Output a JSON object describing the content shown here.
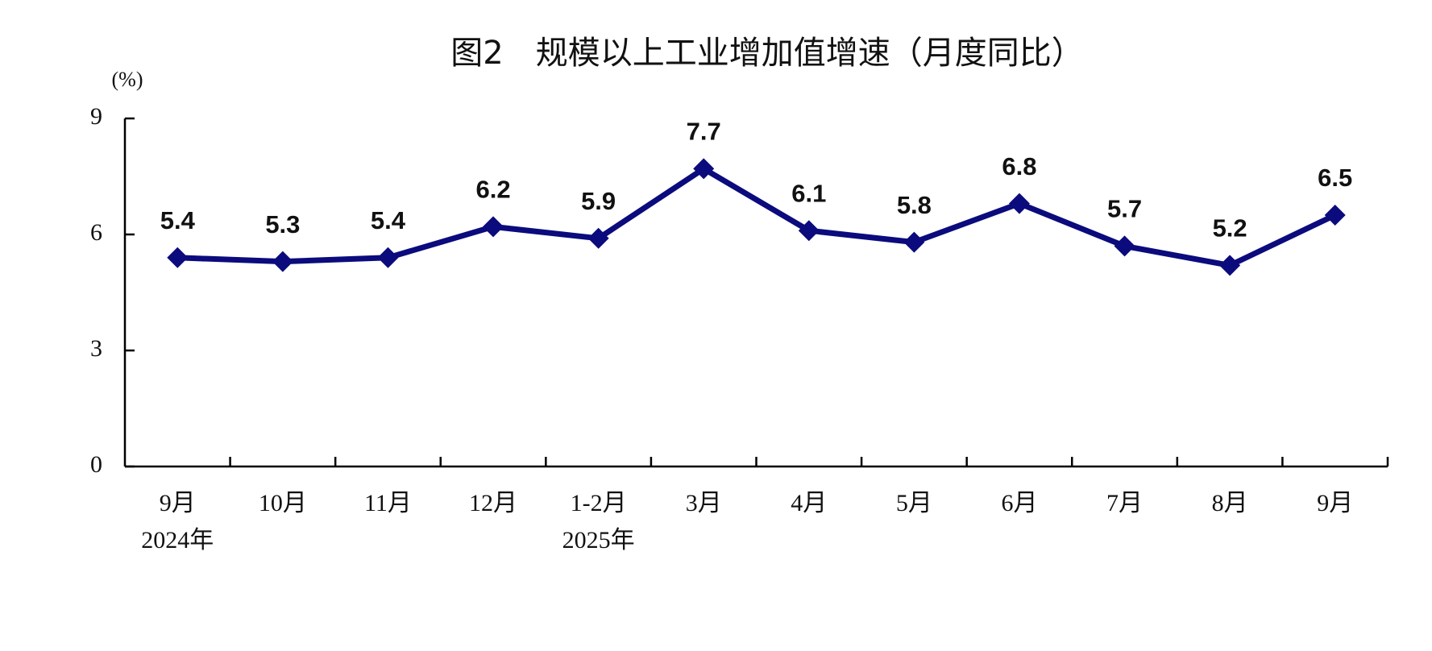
{
  "chart_data": {
    "type": "line",
    "title": "图2　规模以上工业增加值增速（月度同比）",
    "y_unit": "(%)",
    "categories": [
      "9月",
      "10月",
      "11月",
      "12月",
      "1-2月",
      "3月",
      "4月",
      "5月",
      "6月",
      "7月",
      "8月",
      "9月"
    ],
    "year_labels": [
      "2024年",
      null,
      null,
      null,
      "2025年",
      null,
      null,
      null,
      null,
      null,
      null,
      null
    ],
    "values": [
      5.4,
      5.3,
      5.4,
      6.2,
      5.9,
      7.7,
      6.1,
      5.8,
      6.8,
      5.7,
      5.2,
      6.5
    ],
    "color": "#0b0b7d",
    "ylim": [
      0,
      9
    ],
    "yticks": [
      0,
      3,
      6,
      9
    ],
    "grid": false,
    "value_labels_shown": true
  }
}
